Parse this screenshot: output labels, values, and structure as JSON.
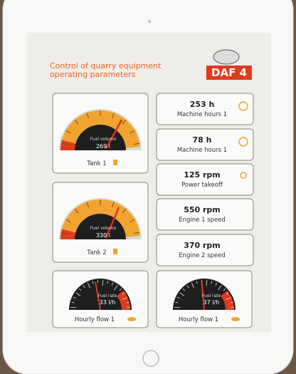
{
  "header": {
    "title": [
      "Control of quarry equipment",
      "operating parameters"
    ],
    "logo": "DAF 4"
  },
  "gauges": [
    {
      "caption": "Fuel volume",
      "reading": "269 l",
      "label": "Tank 1"
    },
    {
      "caption": "Fuel volume",
      "reading": "330 l",
      "label": "Tank 2"
    },
    {
      "caption": "Fuel rate",
      "reading": "33 l/h",
      "label": "Hourly flow 1"
    },
    {
      "caption": "Fuel rate",
      "reading": "37 l/h",
      "label": "Hourly flow 1"
    }
  ],
  "indicators": [
    {
      "value": "253 h",
      "label": "Machine hours 1"
    },
    {
      "value": "78 h",
      "label": "Machine hours 1"
    },
    {
      "value": "125 rpm",
      "label": "Power takeoff"
    },
    {
      "value": "550 rpm",
      "label": "Engine 1 speed"
    },
    {
      "value": "370 rpm",
      "label": "Engine 2 speed"
    }
  ]
}
